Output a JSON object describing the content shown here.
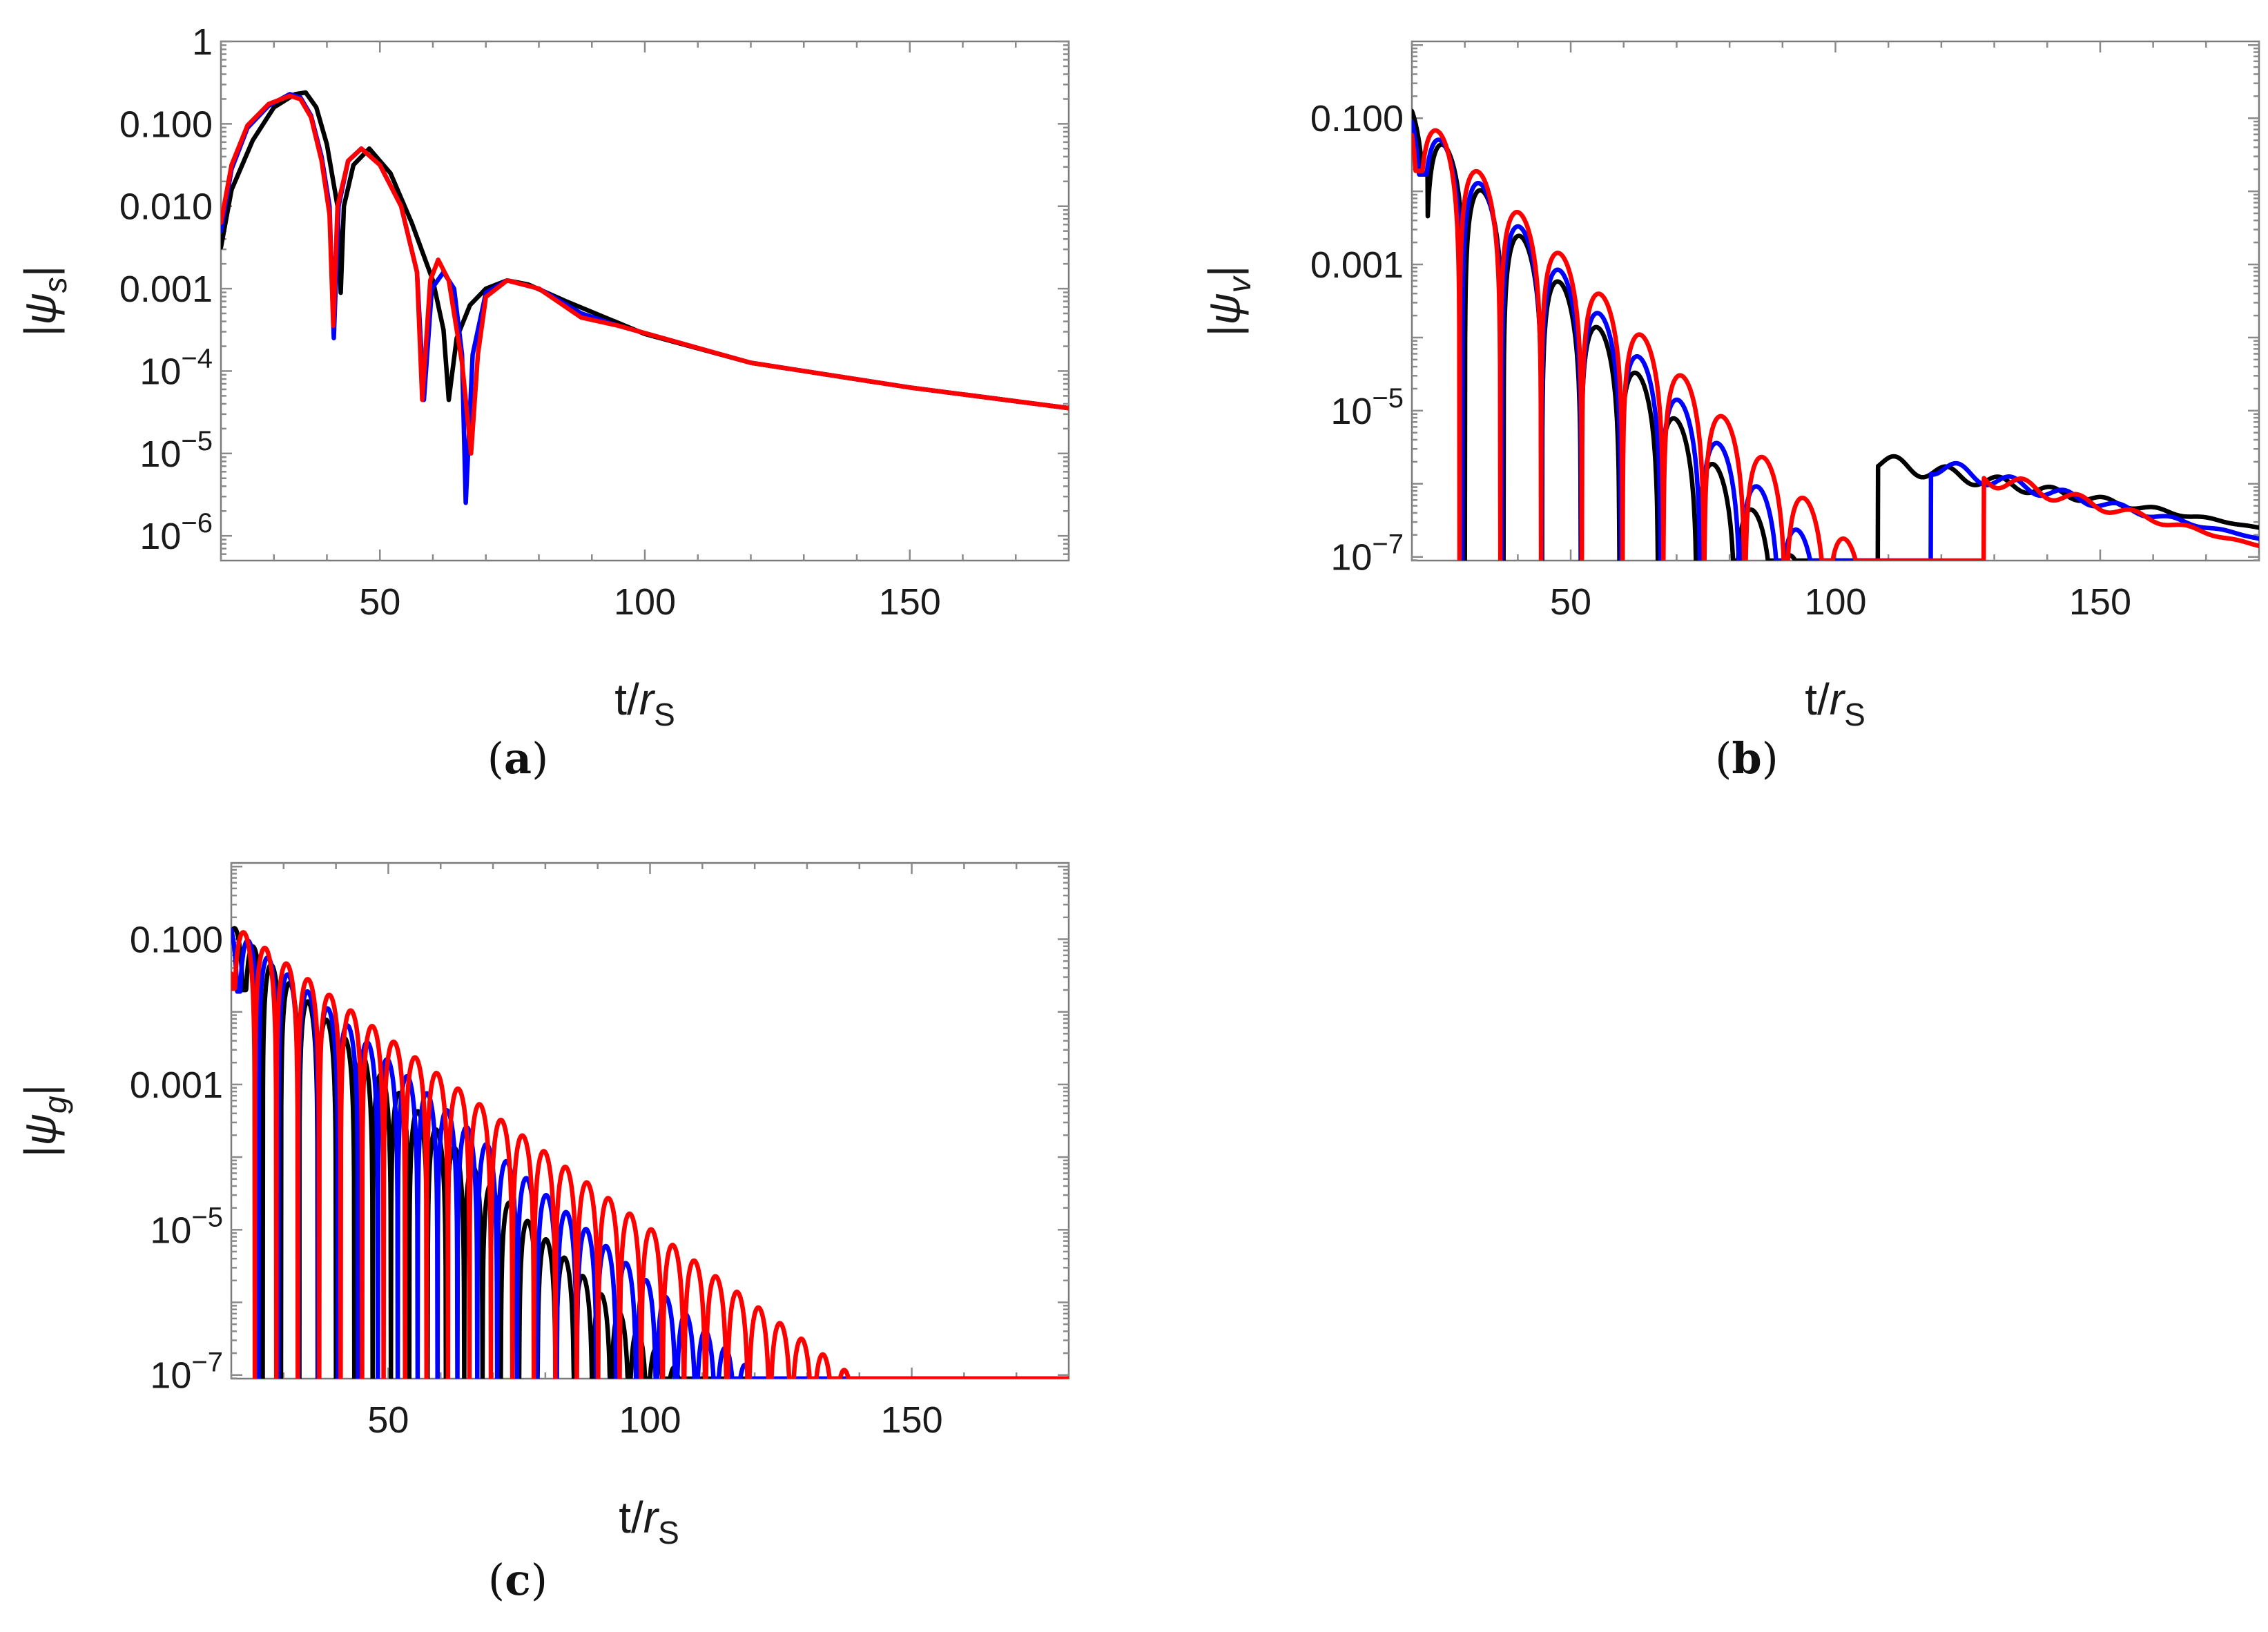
{
  "chart_data": [
    {
      "panel": "(a)",
      "type": "line",
      "xlabel": "t/r_S",
      "ylabel": "|ψ_s|",
      "xlim": [
        20,
        180
      ],
      "ylog": true,
      "ylim_exp": [
        -6.3,
        0
      ],
      "xticks": [
        50,
        100,
        150
      ],
      "yticks": [
        {
          "exp": 0,
          "label": "1"
        },
        {
          "exp": -1,
          "label": "0.100"
        },
        {
          "exp": -2,
          "label": "0.010"
        },
        {
          "exp": -3,
          "label": "0.001"
        },
        {
          "exp": -4,
          "label": "10",
          "sup": "−4"
        },
        {
          "exp": -5,
          "label": "10",
          "sup": "−5"
        },
        {
          "exp": -6,
          "label": "10",
          "sup": "−6"
        }
      ],
      "series": [
        {
          "color": "#000000",
          "values": [
            [
              20.0,
              -2.5
            ],
            [
              22.0,
              -1.8
            ],
            [
              26.0,
              -1.2
            ],
            [
              30.0,
              -0.8
            ],
            [
              34.0,
              -0.64
            ],
            [
              36.0,
              -0.62
            ],
            [
              38.0,
              -0.8
            ],
            [
              40.0,
              -1.25
            ],
            [
              42.0,
              -2.0
            ],
            [
              42.6,
              -3.05
            ],
            [
              43.2,
              -2.0
            ],
            [
              45.0,
              -1.5
            ],
            [
              48.0,
              -1.3
            ],
            [
              52.0,
              -1.6
            ],
            [
              56.0,
              -2.2
            ],
            [
              58.0,
              -2.55
            ],
            [
              60.0,
              -2.9
            ],
            [
              62.0,
              -3.5
            ],
            [
              63.0,
              -4.35
            ],
            [
              64.5,
              -3.6
            ],
            [
              67.0,
              -3.2
            ],
            [
              70.0,
              -3.0
            ],
            [
              74.0,
              -2.9
            ],
            [
              78.0,
              -2.95
            ],
            [
              85.0,
              -3.15
            ],
            [
              100.0,
              -3.55
            ],
            [
              120.0,
              -3.9
            ],
            [
              150.0,
              -4.2
            ],
            [
              180.0,
              -4.45
            ]
          ]
        },
        {
          "color": "#0000ff",
          "values": [
            [
              20.0,
              -2.3
            ],
            [
              22.0,
              -1.55
            ],
            [
              25.0,
              -1.05
            ],
            [
              29.0,
              -0.78
            ],
            [
              33.0,
              -0.64
            ],
            [
              35.0,
              -0.68
            ],
            [
              37.0,
              -0.9
            ],
            [
              39.0,
              -1.4
            ],
            [
              40.5,
              -2.0
            ],
            [
              41.3,
              -3.6
            ],
            [
              42.2,
              -2.0
            ],
            [
              44.0,
              -1.45
            ],
            [
              46.5,
              -1.3
            ],
            [
              50.0,
              -1.5
            ],
            [
              54.0,
              -2.0
            ],
            [
              57.0,
              -2.8
            ],
            [
              58.3,
              -4.35
            ],
            [
              59.8,
              -3.0
            ],
            [
              62.0,
              -2.8
            ],
            [
              64.0,
              -3.0
            ],
            [
              65.5,
              -3.8
            ],
            [
              66.2,
              -5.6
            ],
            [
              67.5,
              -3.8
            ],
            [
              70.0,
              -3.05
            ],
            [
              74.0,
              -2.9
            ],
            [
              80.0,
              -3.0
            ],
            [
              88.0,
              -3.3
            ],
            [
              95.0,
              -3.45
            ],
            [
              120.0,
              -3.9
            ],
            [
              150.0,
              -4.2
            ],
            [
              180.0,
              -4.45
            ]
          ]
        },
        {
          "color": "#ff0000",
          "values": [
            [
              20.0,
              -2.2
            ],
            [
              22.0,
              -1.5
            ],
            [
              25.0,
              -1.02
            ],
            [
              29.0,
              -0.76
            ],
            [
              33.0,
              -0.66
            ],
            [
              35.0,
              -0.7
            ],
            [
              37.0,
              -0.92
            ],
            [
              39.0,
              -1.45
            ],
            [
              40.5,
              -2.1
            ],
            [
              41.2,
              -3.45
            ],
            [
              42.0,
              -2.0
            ],
            [
              44.0,
              -1.45
            ],
            [
              46.5,
              -1.3
            ],
            [
              50.0,
              -1.5
            ],
            [
              54.0,
              -2.0
            ],
            [
              57.0,
              -2.8
            ],
            [
              58.0,
              -4.35
            ],
            [
              59.5,
              -2.9
            ],
            [
              61.0,
              -2.65
            ],
            [
              63.0,
              -2.9
            ],
            [
              65.5,
              -3.9
            ],
            [
              67.2,
              -5.0
            ],
            [
              68.5,
              -3.8
            ],
            [
              70.0,
              -3.1
            ],
            [
              74.0,
              -2.9
            ],
            [
              80.0,
              -3.0
            ],
            [
              88.0,
              -3.35
            ],
            [
              95.0,
              -3.45
            ],
            [
              120.0,
              -3.9
            ],
            [
              150.0,
              -4.2
            ],
            [
              180.0,
              -4.45
            ]
          ]
        }
      ]
    },
    {
      "panel": "(b)",
      "type": "line",
      "xlabel": "t/r_S",
      "ylabel": "|ψ_v|",
      "xlim": [
        20,
        180
      ],
      "ylog": true,
      "ylim_exp": [
        -7.05,
        0.05
      ],
      "xticks": [
        50,
        100,
        150
      ],
      "yticks": [
        {
          "exp": -1,
          "label": "0.100"
        },
        {
          "exp": -3,
          "label": "0.001"
        },
        {
          "exp": -5,
          "label": "10",
          "sup": "−5"
        },
        {
          "exp": -7,
          "label": "10",
          "sup": "−7"
        }
      ],
      "series": [
        {
          "color": "#000000",
          "curve": {
            "start": 20,
            "firstNode": 30,
            "period": 7.3,
            "slope": 0.0855,
            "peak": -0.85,
            "floor": -7.05,
            "dip": 2.6,
            "tailFrom": 108,
            "tailA": -5.7,
            "tailB": -6.6
          }
        },
        {
          "color": "#0000ff",
          "curve": {
            "start": 20,
            "firstNode": 29.5,
            "period": 7.5,
            "slope": 0.079,
            "peak": -0.87,
            "floor": -7.05,
            "dip": 2.6,
            "tailFrom": 118,
            "tailA": -5.75,
            "tailB": -6.75
          }
        },
        {
          "color": "#ff0000",
          "curve": {
            "start": 20,
            "firstNode": 29.0,
            "period": 7.7,
            "slope": 0.0725,
            "peak": -0.82,
            "floor": -7.05,
            "dip": 2.6,
            "tailFrom": 128,
            "tailA": -5.9,
            "tailB": -6.85
          }
        }
      ]
    },
    {
      "panel": "(c)",
      "type": "line",
      "xlabel": "t/r_S",
      "ylabel": "|ψ_g|",
      "xlim": [
        20,
        180
      ],
      "ylog": true,
      "ylim_exp": [
        -7.05,
        0.05
      ],
      "xticks": [
        50,
        100,
        150
      ],
      "yticks": [
        {
          "exp": -1,
          "label": "0.100"
        },
        {
          "exp": -3,
          "label": "0.001"
        },
        {
          "exp": -5,
          "label": "10",
          "sup": "−5"
        },
        {
          "exp": -7,
          "label": "10",
          "sup": "−7"
        }
      ],
      "series": [
        {
          "color": "#000000",
          "curve": {
            "start": 20,
            "firstNode": 26,
            "period": 3.5,
            "slope": 0.072,
            "peak": -0.8,
            "floor": -7.05,
            "dip": 2.5,
            "tailFrom": 999,
            "tailA": 0,
            "tailB": 0
          }
        },
        {
          "color": "#0000ff",
          "curve": {
            "start": 20,
            "firstNode": 25.2,
            "period": 3.8,
            "slope": 0.0615,
            "peak": -0.82,
            "floor": -7.05,
            "dip": 2.5,
            "tailFrom": 999,
            "tailA": 0,
            "tailB": 0
          }
        },
        {
          "color": "#ff0000",
          "curve": {
            "start": 20,
            "firstNode": 24.5,
            "period": 4.1,
            "slope": 0.0525,
            "peak": -0.78,
            "floor": -7.05,
            "dip": 2.5,
            "tailFrom": 999,
            "tailA": 0,
            "tailB": 0
          }
        }
      ]
    }
  ]
}
